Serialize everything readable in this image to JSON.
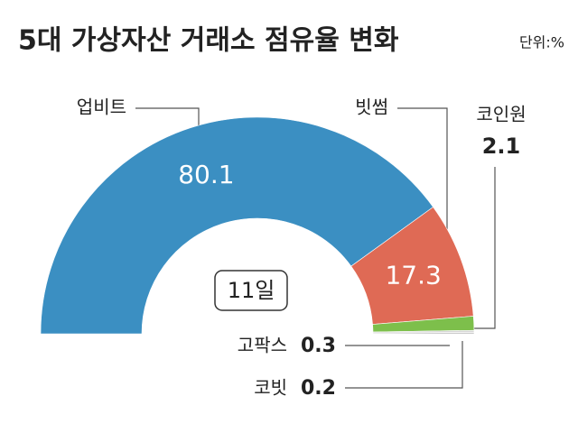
{
  "chart_data": {
    "type": "half-donut",
    "title": "5대 가상자산 거래소 점유율 변화",
    "unit": "단위:%",
    "center_label": "11일",
    "categories": [
      "업비트",
      "빗썸",
      "코인원",
      "고팍스",
      "코빗"
    ],
    "values": [
      80.1,
      17.3,
      2.1,
      0.3,
      0.2
    ],
    "colors": [
      "#3b8fc2",
      "#df6a55",
      "#7dbf4b",
      "#d6d6d6",
      "#b8b8b8"
    ]
  }
}
